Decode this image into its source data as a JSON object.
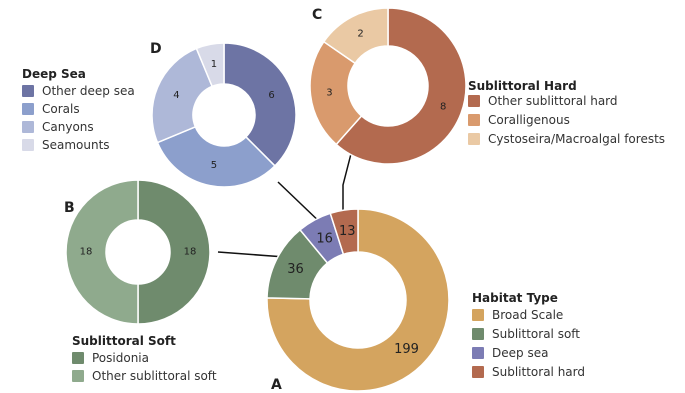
{
  "chart_data": [
    {
      "type": "pie",
      "panel": "A",
      "title": "Habitat Type",
      "slices": [
        {
          "label": "Broad Scale",
          "value": 199,
          "color": "#D4A45F"
        },
        {
          "label": "Sublittoral soft",
          "value": 36,
          "color": "#6F8B6D"
        },
        {
          "label": "Deep sea",
          "value": 16,
          "color": "#7C7CB4"
        },
        {
          "label": "Sublittoral hard",
          "value": 13,
          "color": "#B36A4F"
        }
      ],
      "legend": "bottom-right"
    },
    {
      "type": "pie",
      "panel": "B",
      "title": "Sublittoral Soft",
      "slices": [
        {
          "label": "Posidonia",
          "value": 18,
          "color": "#6F8B6D"
        },
        {
          "label": "Other sublittoral soft",
          "value": 18,
          "color": "#8FAA8D"
        }
      ],
      "legend": "bottom"
    },
    {
      "type": "pie",
      "panel": "C",
      "title": "Sublittoral Hard",
      "slices": [
        {
          "label": "Other sublittoral hard",
          "value": 8,
          "color": "#B36A4F"
        },
        {
          "label": "Coralligenous",
          "value": 3,
          "color": "#D99A6D"
        },
        {
          "label": "Cystoseira/Macroalgal forests",
          "value": 2,
          "color": "#EAC9A4"
        }
      ],
      "legend": "right"
    },
    {
      "type": "pie",
      "panel": "D",
      "title": "Deep Sea",
      "slices": [
        {
          "label": "Other deep sea",
          "value": 6,
          "color": "#6D74A4"
        },
        {
          "label": "Corals",
          "value": 5,
          "color": "#8C9FCC"
        },
        {
          "label": "Canyons",
          "value": 4,
          "color": "#AEB8D8"
        },
        {
          "label": "Seamounts",
          "value": 1,
          "color": "#D8DAE8"
        }
      ],
      "legend": "left"
    }
  ]
}
